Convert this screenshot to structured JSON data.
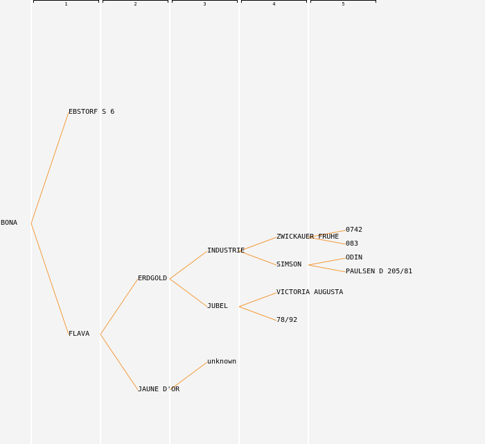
{
  "colors": {
    "background": "#f4f4f4",
    "divider": "#ffffff",
    "link": "#f39a3a",
    "text": "#000000"
  },
  "generations": [
    "1",
    "2",
    "3",
    "4",
    "5"
  ],
  "pedigree": {
    "root": {
      "id": "bona",
      "label": "BONA"
    },
    "gen1": [
      {
        "id": "ebstorf-s-6",
        "label": "EBSTORF S 6"
      },
      {
        "id": "flava",
        "label": "FLAVA"
      }
    ],
    "gen2": [
      {
        "id": "erdgold",
        "label": "ERDGOLD"
      },
      {
        "id": "jaune-d-or",
        "label": "JAUNE D'OR"
      }
    ],
    "gen3": [
      {
        "id": "industrie",
        "label": "INDUSTRIE"
      },
      {
        "id": "jubel",
        "label": "JUBEL"
      },
      {
        "id": "unknown",
        "label": "unknown"
      }
    ],
    "gen4": [
      {
        "id": "zwickauer-fruhe",
        "label": "ZWICKAUER FRUHE"
      },
      {
        "id": "simson",
        "label": "SIMSON"
      },
      {
        "id": "victoria-augusta",
        "label": "VICTORIA AUGUSTA"
      },
      {
        "id": "78-92",
        "label": "78/92"
      }
    ],
    "gen5": [
      {
        "id": "0742",
        "label": "0742"
      },
      {
        "id": "083",
        "label": "083"
      },
      {
        "id": "odin",
        "label": "ODIN"
      },
      {
        "id": "paulsen-d-205-81",
        "label": "PAULSEN D 205/81"
      }
    ]
  }
}
